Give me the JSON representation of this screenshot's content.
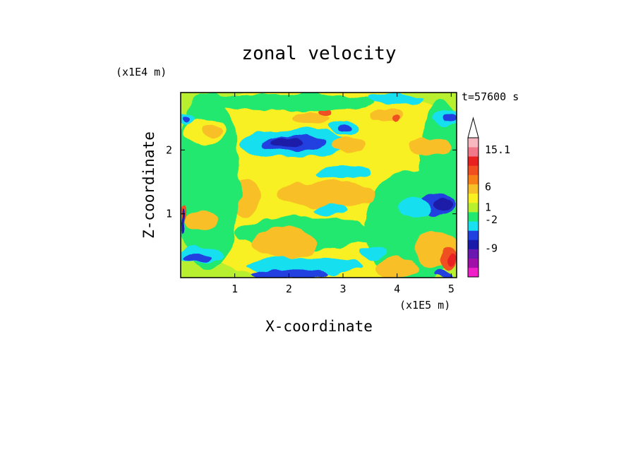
{
  "chart_data": {
    "type": "heatmap",
    "title": "zonal velocity",
    "xlabel": "X-coordinate",
    "ylabel": "Z-coordinate",
    "x_unit": "(x1E5 m)",
    "y_unit": "(x1E4 m)",
    "time_label": "t=57600 s",
    "x_ticks": [
      "1",
      "2",
      "3",
      "4",
      "5"
    ],
    "y_ticks": [
      "1",
      "2"
    ],
    "xlim": [
      0,
      5.1
    ],
    "ylim": [
      0,
      2.9
    ],
    "colorbar": {
      "labels": [
        {
          "text": "15.1",
          "value": 15.1
        },
        {
          "text": "6",
          "value": 6
        },
        {
          "text": "1",
          "value": 1
        },
        {
          "text": "-2",
          "value": -2
        },
        {
          "text": "-9",
          "value": -9
        }
      ],
      "levels": [
        {
          "color": "#f020c8"
        },
        {
          "color": "#a010a8"
        },
        {
          "color": "#6a18b0"
        },
        {
          "color": "#1a1aa8"
        },
        {
          "color": "#2040e0"
        },
        {
          "color": "#18e0f0"
        },
        {
          "color": "#20e870"
        },
        {
          "color": "#b8f030"
        },
        {
          "color": "#f8f020"
        },
        {
          "color": "#f8c028"
        },
        {
          "color": "#f88018"
        },
        {
          "color": "#f05020"
        },
        {
          "color": "#e82020"
        },
        {
          "color": "#f07888"
        },
        {
          "color": "#f8b8c0"
        }
      ]
    },
    "regions": [
      {
        "color": "#f8f020",
        "cx": 2.6,
        "cz": 1.5,
        "rx": 3.0,
        "rz": 1.6
      },
      {
        "color": "#20e870",
        "cx": 4.3,
        "cz": 0.8,
        "rx": 0.9,
        "rz": 0.9
      },
      {
        "color": "#20e870",
        "cx": 2.3,
        "cz": 0.7,
        "rx": 1.3,
        "rz": 0.25
      },
      {
        "color": "#f8c028",
        "cx": 1.9,
        "cz": 0.55,
        "rx": 0.6,
        "rz": 0.25
      },
      {
        "color": "#f8c028",
        "cx": 2.7,
        "cz": 1.3,
        "rx": 0.9,
        "rz": 0.22
      },
      {
        "color": "#f8c028",
        "cx": 1.2,
        "cz": 1.25,
        "rx": 0.25,
        "rz": 0.3
      },
      {
        "color": "#18e0f0",
        "cx": 2.3,
        "cz": 0.18,
        "rx": 1.1,
        "rz": 0.14
      },
      {
        "color": "#2040e0",
        "cx": 2.0,
        "cz": 0.05,
        "rx": 0.7,
        "rz": 0.08
      },
      {
        "color": "#18e0f0",
        "cx": 2.1,
        "cz": 2.1,
        "rx": 1.0,
        "rz": 0.22
      },
      {
        "color": "#2040e0",
        "cx": 2.1,
        "cz": 2.1,
        "rx": 0.6,
        "rz": 0.12
      },
      {
        "color": "#1a1aa8",
        "cx": 1.95,
        "cz": 2.12,
        "rx": 0.3,
        "rz": 0.07
      },
      {
        "color": "#20e870",
        "cx": 2.0,
        "cz": 2.75,
        "rx": 1.6,
        "rz": 0.14
      },
      {
        "color": "#f8c028",
        "cx": 2.4,
        "cz": 2.5,
        "rx": 0.35,
        "rz": 0.1
      },
      {
        "color": "#f05020",
        "cx": 2.7,
        "cz": 2.6,
        "rx": 0.1,
        "rz": 0.05
      },
      {
        "color": "#18e0f0",
        "cx": 3.0,
        "cz": 1.65,
        "rx": 0.5,
        "rz": 0.1
      },
      {
        "color": "#18e0f0",
        "cx": 2.8,
        "cz": 1.05,
        "rx": 0.35,
        "rz": 0.08
      },
      {
        "color": "#18e0f0",
        "cx": 3.55,
        "cz": 0.4,
        "rx": 0.25,
        "rz": 0.1
      },
      {
        "color": "#f8c028",
        "cx": 3.1,
        "cz": 2.1,
        "rx": 0.3,
        "rz": 0.12
      },
      {
        "color": "#18e0f0",
        "cx": 3.0,
        "cz": 2.35,
        "rx": 0.3,
        "rz": 0.1
      },
      {
        "color": "#2040e0",
        "cx": 3.0,
        "cz": 2.35,
        "rx": 0.12,
        "rz": 0.05
      },
      {
        "color": "#20e870",
        "cx": 0.5,
        "cz": 1.5,
        "rx": 0.6,
        "rz": 1.4
      },
      {
        "color": "#f8c028",
        "cx": 0.4,
        "cz": 0.9,
        "rx": 0.3,
        "rz": 0.15
      },
      {
        "color": "#18e0f0",
        "cx": 0.35,
        "cz": 0.35,
        "rx": 0.45,
        "rz": 0.12
      },
      {
        "color": "#2040e0",
        "cx": 0.3,
        "cz": 0.3,
        "rx": 0.25,
        "rz": 0.06
      },
      {
        "color": "#f8f020",
        "cx": 0.45,
        "cz": 2.3,
        "rx": 0.4,
        "rz": 0.2
      },
      {
        "color": "#f8c028",
        "cx": 0.6,
        "cz": 2.3,
        "rx": 0.2,
        "rz": 0.1
      },
      {
        "color": "#18e0f0",
        "cx": 0.1,
        "cz": 2.5,
        "rx": 0.15,
        "rz": 0.1
      },
      {
        "color": "#2040e0",
        "cx": 0.1,
        "cz": 2.5,
        "rx": 0.06,
        "rz": 0.06
      },
      {
        "color": "#f05020",
        "cx": 0.05,
        "cz": 1.0,
        "rx": 0.06,
        "rz": 0.15
      },
      {
        "color": "#1a1aa8",
        "cx": 0.05,
        "cz": 0.9,
        "rx": 0.03,
        "rz": 0.2
      },
      {
        "color": "#f8c028",
        "cx": 4.0,
        "cz": 0.15,
        "rx": 0.4,
        "rz": 0.15
      },
      {
        "color": "#20e870",
        "cx": 4.8,
        "cz": 1.5,
        "rx": 0.4,
        "rz": 1.3
      },
      {
        "color": "#2040e0",
        "cx": 4.75,
        "cz": 1.15,
        "rx": 0.35,
        "rz": 0.15
      },
      {
        "color": "#1a1aa8",
        "cx": 4.85,
        "cz": 1.15,
        "rx": 0.2,
        "rz": 0.08
      },
      {
        "color": "#f8c028",
        "cx": 4.7,
        "cz": 0.45,
        "rx": 0.4,
        "rz": 0.3
      },
      {
        "color": "#f05020",
        "cx": 4.95,
        "cz": 0.3,
        "rx": 0.15,
        "rz": 0.18
      },
      {
        "color": "#e82020",
        "cx": 5.0,
        "cz": 0.3,
        "rx": 0.08,
        "rz": 0.1
      },
      {
        "color": "#2040e0",
        "cx": 4.9,
        "cz": 0.05,
        "rx": 0.2,
        "rz": 0.05
      },
      {
        "color": "#f8c028",
        "cx": 4.6,
        "cz": 2.05,
        "rx": 0.4,
        "rz": 0.15
      },
      {
        "color": "#18e0f0",
        "cx": 4.9,
        "cz": 2.5,
        "rx": 0.25,
        "rz": 0.12
      },
      {
        "color": "#2040e0",
        "cx": 4.95,
        "cz": 2.5,
        "rx": 0.12,
        "rz": 0.06
      },
      {
        "color": "#f8c028",
        "cx": 3.8,
        "cz": 2.55,
        "rx": 0.3,
        "rz": 0.1
      },
      {
        "color": "#f05020",
        "cx": 3.95,
        "cz": 2.5,
        "rx": 0.08,
        "rz": 0.05
      },
      {
        "color": "#18e0f0",
        "cx": 4.0,
        "cz": 2.8,
        "rx": 0.5,
        "rz": 0.08
      },
      {
        "color": "#2040e0",
        "cx": 4.3,
        "cz": 1.1,
        "rx": 0.15,
        "rz": 0.08
      },
      {
        "color": "#18e0f0",
        "cx": 4.3,
        "cz": 1.1,
        "rx": 0.3,
        "rz": 0.15
      }
    ]
  }
}
